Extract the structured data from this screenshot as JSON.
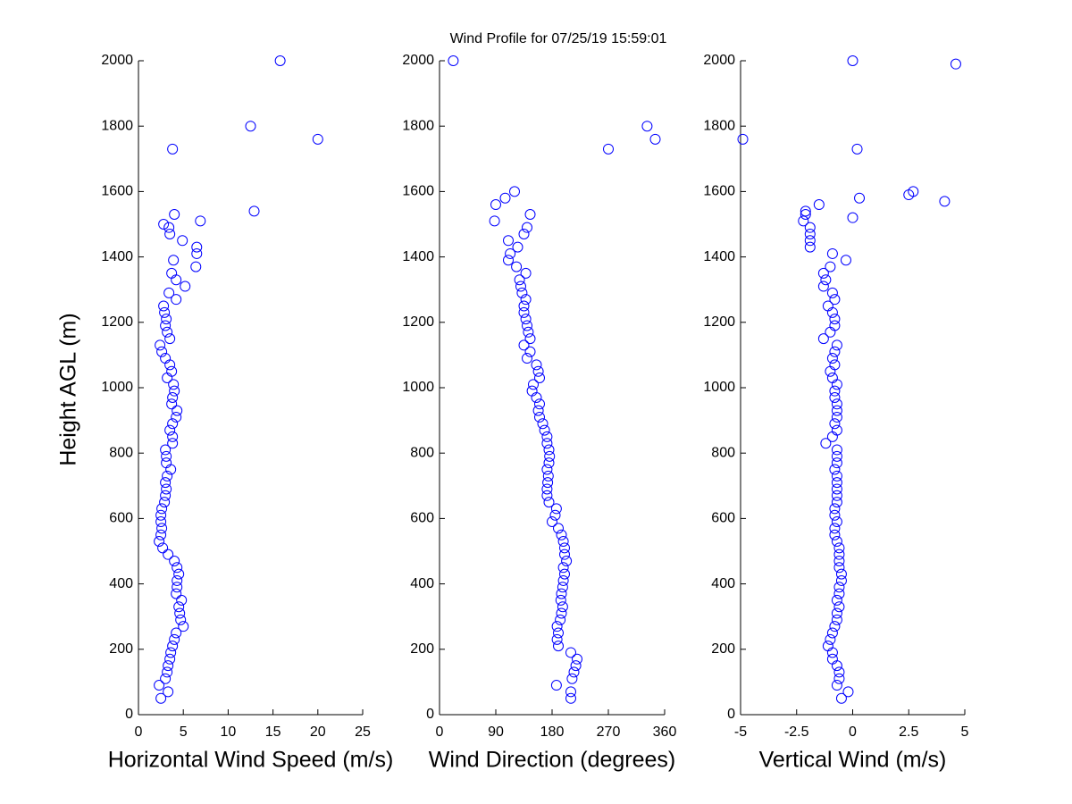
{
  "chart_data": [
    {
      "type": "scatter",
      "title": "Wind Profile for  07/25/19 15:59:01",
      "ylabel": "Height AGL (m)",
      "xlabel": "Horizontal Wind Speed (m/s)",
      "color": "#0000ff",
      "xlim": [
        0,
        25
      ],
      "xticks": [
        0,
        5,
        10,
        15,
        20,
        25
      ],
      "ylim": [
        0,
        2000
      ],
      "yticks": [
        0,
        200,
        400,
        600,
        800,
        1000,
        1200,
        1400,
        1600,
        1800,
        2000
      ],
      "x": [
        2.5,
        3.3,
        2.3,
        3.0,
        3.2,
        3.3,
        3.5,
        3.6,
        3.8,
        4.0,
        4.2,
        5.0,
        4.7,
        4.6,
        4.5,
        4.8,
        4.2,
        4.3,
        4.3,
        4.5,
        4.3,
        4.0,
        3.3,
        2.7,
        2.3,
        2.5,
        2.6,
        2.5,
        2.5,
        2.6,
        2.9,
        3.0,
        3.1,
        3.0,
        3.2,
        3.6,
        3.1,
        3.1,
        3.0,
        3.8,
        3.8,
        3.5,
        3.8,
        4.2,
        4.3,
        3.7,
        3.8,
        4.0,
        3.9,
        3.2,
        3.7,
        3.5,
        3.0,
        2.6,
        2.4,
        3.5,
        3.2,
        3.0,
        3.1,
        2.9,
        2.8,
        4.2,
        3.4,
        5.2,
        4.2,
        3.7,
        6.4,
        3.9,
        6.5,
        6.5,
        4.9,
        3.5,
        3.4,
        6.9,
        4.0,
        12.9,
        2.8,
        3.8,
        20.0,
        12.5,
        15.8
      ],
      "y": [
        50,
        70,
        90,
        110,
        130,
        150,
        170,
        190,
        210,
        230,
        250,
        270,
        290,
        310,
        330,
        350,
        370,
        390,
        410,
        430,
        450,
        470,
        490,
        510,
        530,
        550,
        570,
        590,
        610,
        630,
        650,
        670,
        690,
        710,
        730,
        750,
        770,
        790,
        810,
        830,
        850,
        870,
        890,
        910,
        930,
        950,
        970,
        990,
        1010,
        1030,
        1050,
        1070,
        1090,
        1110,
        1130,
        1150,
        1170,
        1190,
        1210,
        1230,
        1250,
        1270,
        1290,
        1310,
        1330,
        1350,
        1370,
        1390,
        1410,
        1430,
        1450,
        1470,
        1490,
        1510,
        1530,
        1540,
        1500,
        1730,
        1760,
        1800,
        2000
      ]
    },
    {
      "type": "scatter",
      "xlabel": "Wind Direction (degrees)",
      "color": "#0000ff",
      "xlim": [
        0,
        360
      ],
      "xticks": [
        0,
        90,
        180,
        270,
        360
      ],
      "ylim": [
        0,
        2000
      ],
      "yticks": [
        0,
        200,
        400,
        600,
        800,
        1000,
        1200,
        1400,
        1600,
        1800,
        2000
      ],
      "x": [
        210,
        210,
        187,
        212,
        215,
        218,
        220,
        210,
        190,
        188,
        190,
        188,
        193,
        195,
        197,
        194,
        195,
        197,
        198,
        200,
        198,
        203,
        200,
        200,
        198,
        195,
        190,
        180,
        185,
        187,
        175,
        172,
        172,
        173,
        174,
        172,
        175,
        176,
        175,
        172,
        172,
        168,
        165,
        160,
        158,
        160,
        155,
        148,
        150,
        160,
        158,
        155,
        140,
        145,
        135,
        145,
        142,
        140,
        138,
        135,
        135,
        138,
        132,
        130,
        128,
        138,
        123,
        110,
        113,
        125,
        110,
        135,
        140,
        88,
        145,
        90,
        105,
        120,
        270,
        345,
        332,
        22
      ],
      "y": [
        50,
        70,
        90,
        110,
        130,
        150,
        170,
        190,
        210,
        230,
        250,
        270,
        290,
        310,
        330,
        350,
        370,
        390,
        410,
        430,
        450,
        470,
        490,
        510,
        530,
        550,
        570,
        590,
        610,
        630,
        650,
        670,
        690,
        710,
        730,
        750,
        770,
        790,
        810,
        830,
        850,
        870,
        890,
        910,
        930,
        950,
        970,
        990,
        1010,
        1030,
        1050,
        1070,
        1090,
        1110,
        1130,
        1150,
        1170,
        1190,
        1210,
        1230,
        1250,
        1270,
        1290,
        1310,
        1330,
        1350,
        1370,
        1390,
        1410,
        1430,
        1450,
        1470,
        1490,
        1510,
        1530,
        1560,
        1580,
        1600,
        1730,
        1760,
        1800,
        2000
      ]
    },
    {
      "type": "scatter",
      "xlabel": "Vertical Wind (m/s)",
      "color": "#0000ff",
      "xlim": [
        -5,
        5
      ],
      "xticks": [
        -5,
        -2.5,
        0,
        2.5,
        5
      ],
      "ylim": [
        0,
        2000
      ],
      "yticks": [
        0,
        200,
        400,
        600,
        800,
        1000,
        1200,
        1400,
        1600,
        1800,
        2000
      ],
      "x": [
        -0.5,
        -0.2,
        -0.7,
        -0.6,
        -0.6,
        -0.7,
        -0.9,
        -0.9,
        -1.1,
        -1.0,
        -0.9,
        -0.8,
        -0.7,
        -0.7,
        -0.6,
        -0.7,
        -0.6,
        -0.6,
        -0.5,
        -0.5,
        -0.6,
        -0.6,
        -0.6,
        -0.6,
        -0.7,
        -0.8,
        -0.8,
        -0.7,
        -0.8,
        -0.8,
        -0.7,
        -0.7,
        -0.7,
        -0.7,
        -0.7,
        -0.8,
        -0.7,
        -0.7,
        -0.7,
        -1.2,
        -0.9,
        -0.7,
        -0.8,
        -0.7,
        -0.7,
        -0.7,
        -0.8,
        -0.8,
        -0.7,
        -0.9,
        -1.0,
        -0.8,
        -0.9,
        -0.8,
        -0.7,
        -1.3,
        -1.0,
        -0.8,
        -0.8,
        -0.9,
        -1.1,
        -0.8,
        -0.9,
        -1.3,
        -1.2,
        -1.3,
        -1.0,
        -0.3,
        -0.9,
        -1.9,
        -1.9,
        -1.9,
        -1.9,
        -2.2,
        -2.1,
        -2.1,
        0.0,
        -1.5,
        4.1,
        0.3,
        2.5,
        2.7,
        0.2,
        -4.9,
        4.6,
        0.0
      ],
      "y": [
        50,
        70,
        90,
        110,
        130,
        150,
        170,
        190,
        210,
        230,
        250,
        270,
        290,
        310,
        330,
        350,
        370,
        390,
        410,
        430,
        450,
        470,
        490,
        510,
        530,
        550,
        570,
        590,
        610,
        630,
        650,
        670,
        690,
        710,
        730,
        750,
        770,
        790,
        810,
        830,
        850,
        870,
        890,
        910,
        930,
        950,
        970,
        990,
        1010,
        1030,
        1050,
        1070,
        1090,
        1110,
        1130,
        1150,
        1170,
        1190,
        1210,
        1230,
        1250,
        1270,
        1290,
        1310,
        1330,
        1350,
        1370,
        1390,
        1410,
        1430,
        1450,
        1470,
        1490,
        1510,
        1530,
        1540,
        1520,
        1560,
        1570,
        1580,
        1590,
        1600,
        1730,
        1760,
        1990,
        2000
      ]
    }
  ]
}
